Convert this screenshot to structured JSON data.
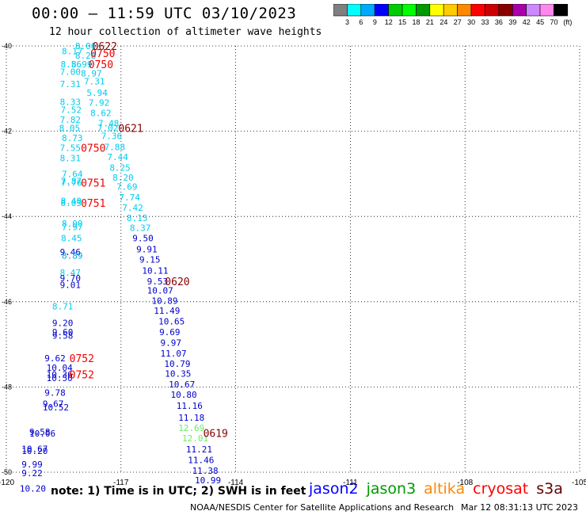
{
  "header": {
    "title": "00:00 — 11:59 UTC 03/10/2023",
    "subtitle": "12 hour collection of altimeter wave heights"
  },
  "legend": {
    "colors": [
      "#808080",
      "#00ffff",
      "#00aaff",
      "#0000ff",
      "#00cc00",
      "#00ff00",
      "#009900",
      "#ffff00",
      "#ffcc00",
      "#ff8800",
      "#ff0000",
      "#cc0000",
      "#880000",
      "#aa00aa",
      "#cc88ff",
      "#ff88ee",
      "#000000"
    ],
    "labels": [
      "3",
      "6",
      "9",
      "12",
      "15",
      "18",
      "21",
      "24",
      "27",
      "30",
      "33",
      "36",
      "39",
      "42",
      "45",
      "70",
      "(ft)"
    ]
  },
  "footer": {
    "note": "note:  1) Time is in UTC; 2) SWH is in feet",
    "credit": "NOAA/NESDIS Center for Satellite Applications and Research",
    "timestamp": "Mar 12 08:31:13 UTC 2023",
    "satellites": [
      {
        "name": "jason2",
        "color": "#0000ff"
      },
      {
        "name": "jason3",
        "color": "#009900"
      },
      {
        "name": "altika",
        "color": "#ff8800"
      },
      {
        "name": "cryosat",
        "color": "#ff0000"
      },
      {
        "name": "s3a",
        "color": "#660000"
      }
    ]
  },
  "chart_data": {
    "type": "scatter",
    "title": "00:00 — 11:59 UTC 03/10/2023",
    "xlim": [
      -120,
      -105
    ],
    "ylim": [
      -50,
      -40
    ],
    "xticks": [
      -120,
      -117,
      -114,
      -111,
      -108,
      -105
    ],
    "yticks": [
      -40,
      -42,
      -44,
      -46,
      -48,
      -50
    ],
    "xtick_labels": [
      "-120",
      "-117",
      "-114",
      "-111",
      "-108",
      "-105"
    ],
    "ytick_labels": [
      "-40",
      "-42",
      "-44",
      "-46",
      "-48",
      "-50"
    ],
    "grid": true,
    "point_colors": {
      "c": "#00ccee",
      "b": "#0000cc",
      "g": "#66ee66",
      "w": "#00aaee"
    },
    "points": [
      {
        "lon": -118.2,
        "lat": -40.0,
        "v": "8.00",
        "c": "c"
      },
      {
        "lon": -118.55,
        "lat": -40.12,
        "v": "8.17",
        "c": "c"
      },
      {
        "lon": -118.2,
        "lat": -40.22,
        "v": "8.28",
        "c": "c"
      },
      {
        "lon": -118.3,
        "lat": -40.43,
        "v": "8.99",
        "c": "c"
      },
      {
        "lon": -118.58,
        "lat": -40.43,
        "v": "8.56",
        "c": "c"
      },
      {
        "lon": -118.6,
        "lat": -40.6,
        "v": "7.00",
        "c": "c"
      },
      {
        "lon": -118.05,
        "lat": -40.64,
        "v": "8.97",
        "c": "c"
      },
      {
        "lon": -118.6,
        "lat": -40.89,
        "v": "7.31",
        "c": "c"
      },
      {
        "lon": -117.97,
        "lat": -40.83,
        "v": "7.31",
        "c": "c"
      },
      {
        "lon": -117.9,
        "lat": -41.1,
        "v": "5.94",
        "c": "c"
      },
      {
        "lon": -118.6,
        "lat": -41.31,
        "v": "8.33",
        "c": "c"
      },
      {
        "lon": -117.85,
        "lat": -41.33,
        "v": "7.92",
        "c": "c"
      },
      {
        "lon": -118.58,
        "lat": -41.5,
        "v": "7.52",
        "c": "c"
      },
      {
        "lon": -117.8,
        "lat": -41.57,
        "v": "8.62",
        "c": "c"
      },
      {
        "lon": -118.6,
        "lat": -41.73,
        "v": "7.82",
        "c": "c"
      },
      {
        "lon": -117.6,
        "lat": -41.81,
        "v": "7.48",
        "c": "c"
      },
      {
        "lon": -118.62,
        "lat": -41.92,
        "v": "8.05",
        "c": "c"
      },
      {
        "lon": -117.62,
        "lat": -41.92,
        "v": "7.02",
        "c": "c"
      },
      {
        "lon": -117.52,
        "lat": -42.11,
        "v": "7.36",
        "c": "c"
      },
      {
        "lon": -118.55,
        "lat": -42.16,
        "v": "8.73",
        "c": "c"
      },
      {
        "lon": -117.44,
        "lat": -42.37,
        "v": "7.88",
        "c": "c"
      },
      {
        "lon": -118.6,
        "lat": -42.39,
        "v": "7.55",
        "c": "c"
      },
      {
        "lon": -117.36,
        "lat": -42.6,
        "v": "7.44",
        "c": "c"
      },
      {
        "lon": -118.6,
        "lat": -42.63,
        "v": "8.31",
        "c": "c"
      },
      {
        "lon": -117.3,
        "lat": -42.85,
        "v": "8.25",
        "c": "c"
      },
      {
        "lon": -118.55,
        "lat": -43.0,
        "v": "7.64",
        "c": "c"
      },
      {
        "lon": -117.22,
        "lat": -43.09,
        "v": "8.20",
        "c": "c"
      },
      {
        "lon": -118.58,
        "lat": -43.17,
        "v": "7.87",
        "c": "c"
      },
      {
        "lon": -118.57,
        "lat": -43.21,
        "v": "7.76",
        "c": "c"
      },
      {
        "lon": -117.12,
        "lat": -43.3,
        "v": "7.69",
        "c": "c"
      },
      {
        "lon": -117.05,
        "lat": -43.55,
        "v": "7.74",
        "c": "c"
      },
      {
        "lon": -118.58,
        "lat": -43.63,
        "v": "8.40",
        "c": "c"
      },
      {
        "lon": -118.58,
        "lat": -43.68,
        "v": "8.03",
        "c": "c"
      },
      {
        "lon": -116.97,
        "lat": -43.79,
        "v": "7.42",
        "c": "c"
      },
      {
        "lon": -116.85,
        "lat": -44.03,
        "v": "8.15",
        "c": "c"
      },
      {
        "lon": -118.55,
        "lat": -44.16,
        "v": "8.00",
        "c": "c"
      },
      {
        "lon": -118.55,
        "lat": -44.25,
        "v": "7.97",
        "c": "c"
      },
      {
        "lon": -116.77,
        "lat": -44.27,
        "v": "8.37",
        "c": "c"
      },
      {
        "lon": -118.57,
        "lat": -44.51,
        "v": "8.45",
        "c": "c"
      },
      {
        "lon": -116.7,
        "lat": -44.51,
        "v": "9.50",
        "c": "b"
      },
      {
        "lon": -116.6,
        "lat": -44.77,
        "v": "9.91",
        "c": "b"
      },
      {
        "lon": -118.6,
        "lat": -44.83,
        "v": "9.46",
        "c": "b"
      },
      {
        "lon": -118.55,
        "lat": -44.92,
        "v": "8.89",
        "c": "w"
      },
      {
        "lon": -116.52,
        "lat": -45.01,
        "v": "9.15",
        "c": "b"
      },
      {
        "lon": -116.45,
        "lat": -45.27,
        "v": "10.11",
        "c": "b"
      },
      {
        "lon": -118.6,
        "lat": -45.32,
        "v": "8.47",
        "c": "c"
      },
      {
        "lon": -118.6,
        "lat": -45.45,
        "v": "9.70",
        "c": "b"
      },
      {
        "lon": -116.32,
        "lat": -45.52,
        "v": "9.53",
        "c": "b"
      },
      {
        "lon": -118.6,
        "lat": -45.6,
        "v": "9.01",
        "c": "b"
      },
      {
        "lon": -116.32,
        "lat": -45.73,
        "v": "10.07",
        "c": "b"
      },
      {
        "lon": -116.2,
        "lat": -45.98,
        "v": "10.89",
        "c": "b"
      },
      {
        "lon": -118.8,
        "lat": -46.11,
        "v": "8.71",
        "c": "c"
      },
      {
        "lon": -116.14,
        "lat": -46.21,
        "v": "11.49",
        "c": "b"
      },
      {
        "lon": -118.8,
        "lat": -46.5,
        "v": "9.20",
        "c": "b"
      },
      {
        "lon": -116.02,
        "lat": -46.46,
        "v": "10.65",
        "c": "b"
      },
      {
        "lon": -118.8,
        "lat": -46.71,
        "v": "9.60",
        "c": "b"
      },
      {
        "lon": -116.0,
        "lat": -46.71,
        "v": "9.69",
        "c": "b"
      },
      {
        "lon": -118.8,
        "lat": -46.79,
        "v": "9.58",
        "c": "b"
      },
      {
        "lon": -115.97,
        "lat": -46.96,
        "v": "9.97",
        "c": "b"
      },
      {
        "lon": -115.97,
        "lat": -47.21,
        "v": "11.07",
        "c": "b"
      },
      {
        "lon": -119.0,
        "lat": -47.32,
        "v": "9.62",
        "c": "b"
      },
      {
        "lon": -115.87,
        "lat": -47.45,
        "v": "10.79",
        "c": "b"
      },
      {
        "lon": -118.95,
        "lat": -47.55,
        "v": "10.04",
        "c": "b"
      },
      {
        "lon": -115.85,
        "lat": -47.69,
        "v": "10.35",
        "c": "b"
      },
      {
        "lon": -118.95,
        "lat": -47.7,
        "v": "10.36",
        "c": "b"
      },
      {
        "lon": -118.95,
        "lat": -47.79,
        "v": "10.50",
        "c": "b"
      },
      {
        "lon": -115.75,
        "lat": -47.94,
        "v": "10.67",
        "c": "b"
      },
      {
        "lon": -119.0,
        "lat": -48.13,
        "v": "9.78",
        "c": "b"
      },
      {
        "lon": -115.7,
        "lat": -48.18,
        "v": "10.80",
        "c": "b"
      },
      {
        "lon": -119.05,
        "lat": -48.39,
        "v": "9.67",
        "c": "b"
      },
      {
        "lon": -115.55,
        "lat": -48.44,
        "v": "11.16",
        "c": "b"
      },
      {
        "lon": -119.05,
        "lat": -48.48,
        "v": "10.52",
        "c": "b"
      },
      {
        "lon": -115.5,
        "lat": -48.72,
        "v": "11.18",
        "c": "b"
      },
      {
        "lon": -115.5,
        "lat": -48.96,
        "v": "12.69",
        "c": "g"
      },
      {
        "lon": -119.4,
        "lat": -49.05,
        "v": "9.58",
        "c": "b"
      },
      {
        "lon": -119.4,
        "lat": -49.09,
        "v": "10.06",
        "c": "b"
      },
      {
        "lon": -115.4,
        "lat": -49.2,
        "v": "12.01",
        "c": "g"
      },
      {
        "lon": -115.3,
        "lat": -49.46,
        "v": "11.21",
        "c": "b"
      },
      {
        "lon": -119.6,
        "lat": -49.45,
        "v": "10.67",
        "c": "b"
      },
      {
        "lon": -119.6,
        "lat": -49.5,
        "v": "10.20",
        "c": "b"
      },
      {
        "lon": -115.25,
        "lat": -49.71,
        "v": "11.46",
        "c": "b"
      },
      {
        "lon": -119.6,
        "lat": -49.81,
        "v": "9.99",
        "c": "b"
      },
      {
        "lon": -119.6,
        "lat": -50.02,
        "v": "9.22",
        "c": "b"
      },
      {
        "lon": -115.14,
        "lat": -49.96,
        "v": "11.38",
        "c": "b"
      },
      {
        "lon": -115.07,
        "lat": -50.19,
        "v": "10.99",
        "c": "b"
      },
      {
        "lon": -119.65,
        "lat": -50.38,
        "v": "10.20",
        "c": "b"
      }
    ],
    "time_labels": [
      {
        "lon": -117.75,
        "lat": -40.0,
        "v": "0622",
        "c": "#880000"
      },
      {
        "lon": -117.8,
        "lat": -40.17,
        "v": "0750",
        "c": "#ee0000"
      },
      {
        "lon": -117.85,
        "lat": -40.43,
        "v": "0750",
        "c": "#ee0000"
      },
      {
        "lon": -117.07,
        "lat": -41.92,
        "v": "0621",
        "c": "#880000"
      },
      {
        "lon": -118.05,
        "lat": -42.39,
        "v": "0750",
        "c": "#ee0000"
      },
      {
        "lon": -118.05,
        "lat": -43.21,
        "v": "0751",
        "c": "#ee0000"
      },
      {
        "lon": -118.05,
        "lat": -43.68,
        "v": "0751",
        "c": "#ee0000"
      },
      {
        "lon": -115.85,
        "lat": -45.52,
        "v": "0620",
        "c": "#880000"
      },
      {
        "lon": -118.35,
        "lat": -47.32,
        "v": "0752",
        "c": "#ee0000"
      },
      {
        "lon": -118.35,
        "lat": -47.7,
        "v": "0752",
        "c": "#ee0000"
      },
      {
        "lon": -114.85,
        "lat": -49.08,
        "v": "0619",
        "c": "#880000"
      }
    ]
  }
}
